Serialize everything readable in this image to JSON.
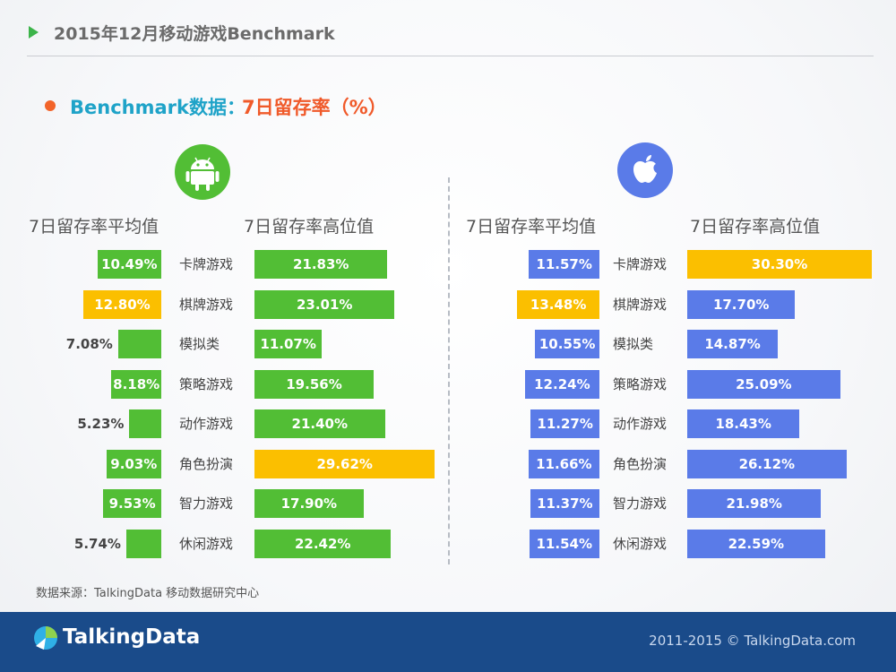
{
  "header": {
    "title": "2015年12月移动游戏Benchmark"
  },
  "subtitle": {
    "part1": "Benchmark数据：",
    "part2": "7日留存率（%）"
  },
  "platforms": {
    "left": "android-icon",
    "right": "apple-icon"
  },
  "colors": {
    "green": "#52be35",
    "yellow": "#fbbf00",
    "blue": "#5a7be8",
    "android_icon_bg": "#52be35",
    "apple_icon_bg": "#5a7be8"
  },
  "chart_data": [
    {
      "type": "bar",
      "platform": "Android",
      "categories": [
        "卡牌游戏",
        "棋牌游戏",
        "模拟类",
        "策略游戏",
        "动作游戏",
        "角色扮演",
        "智力游戏",
        "休闲游戏"
      ],
      "series": [
        {
          "name": "7日留存率平均值",
          "values": [
            10.49,
            12.8,
            7.08,
            8.18,
            5.23,
            9.03,
            9.53,
            5.74
          ],
          "labels": [
            "10.49%",
            "12.80%",
            "7.08%",
            "8.18%",
            "5.23%",
            "9.03%",
            "9.53%",
            "5.74%"
          ],
          "highlight_index": 1
        },
        {
          "name": "7日留存率高位值",
          "values": [
            21.83,
            23.01,
            11.07,
            19.56,
            21.4,
            29.62,
            17.9,
            22.42
          ],
          "labels": [
            "21.83%",
            "23.01%",
            "11.07%",
            "19.56%",
            "21.40%",
            "29.62%",
            "17.90%",
            "22.42%"
          ],
          "highlight_index": 5
        }
      ]
    },
    {
      "type": "bar",
      "platform": "iOS",
      "categories": [
        "卡牌游戏",
        "棋牌游戏",
        "模拟类",
        "策略游戏",
        "动作游戏",
        "角色扮演",
        "智力游戏",
        "休闲游戏"
      ],
      "series": [
        {
          "name": "7日留存率平均值",
          "values": [
            11.57,
            13.48,
            10.55,
            12.24,
            11.27,
            11.66,
            11.37,
            11.54
          ],
          "labels": [
            "11.57%",
            "13.48%",
            "10.55%",
            "12.24%",
            "11.27%",
            "11.66%",
            "11.37%",
            "11.54%"
          ],
          "highlight_index": 1
        },
        {
          "name": "7日留存率高位值",
          "values": [
            30.3,
            17.7,
            14.87,
            25.09,
            18.43,
            26.12,
            21.98,
            22.59
          ],
          "labels": [
            "30.30%",
            "17.70%",
            "14.87%",
            "25.09%",
            "18.43%",
            "26.12%",
            "21.98%",
            "22.59%"
          ],
          "highlight_index": 0
        }
      ]
    }
  ],
  "source": "数据来源：TalkingData 移动数据研究中心",
  "footer": {
    "logo": "TalkingData",
    "copyright": "2011-2015 © TalkingData.com"
  }
}
